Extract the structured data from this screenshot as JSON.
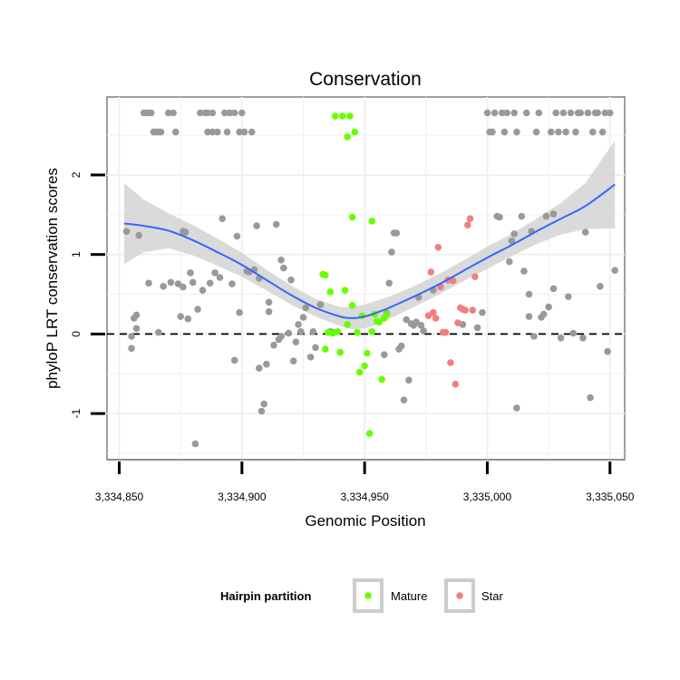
{
  "chart_data": {
    "type": "scatter",
    "title": "Conservation",
    "xlabel": "Genomic Position",
    "ylabel": "phyloP LRT conservation scores",
    "xlim": [
      3334845,
      3335056
    ],
    "ylim": [
      -1.58,
      2.98
    ],
    "x_ticks": [
      3334850,
      3334900,
      3334950,
      3335000,
      3335050
    ],
    "x_tick_labels": [
      "3,334,850",
      "3,334,900",
      "3,334,950",
      "3,335,000",
      "3,335,050"
    ],
    "y_ticks": [
      -1,
      0,
      1,
      2
    ],
    "y_tick_labels": [
      "-1",
      "0",
      "1",
      "2"
    ],
    "grid": true,
    "reference_line": {
      "y": 0,
      "style": "dashed"
    },
    "legend": {
      "title": "Hairpin partition",
      "position": "bottom",
      "entries": [
        {
          "label": "Mature",
          "color": "#66ff00"
        },
        {
          "label": "Star",
          "color": "#f08080"
        }
      ]
    },
    "colors": {
      "Other": "#999999",
      "Mature": "#66ff00",
      "Star": "#f08080",
      "smooth": "#3366ff",
      "band": "#d3d3d3"
    },
    "smooth_fit": {
      "x": [
        3334852,
        3334860,
        3334870,
        3334880,
        3334890,
        3334900,
        3334910,
        3334920,
        3334930,
        3334940,
        3334945,
        3334950,
        3334955,
        3334960,
        3334970,
        3334980,
        3334990,
        3335000,
        3335010,
        3335020,
        3335030,
        3335040,
        3335052
      ],
      "y": [
        1.39,
        1.36,
        1.3,
        1.18,
        1.03,
        0.87,
        0.68,
        0.49,
        0.33,
        0.22,
        0.2,
        0.22,
        0.27,
        0.33,
        0.47,
        0.62,
        0.79,
        0.96,
        1.12,
        1.29,
        1.45,
        1.61,
        1.88
      ],
      "lower": [
        0.88,
        1.03,
        1.08,
        0.99,
        0.86,
        0.72,
        0.55,
        0.37,
        0.22,
        0.1,
        0.06,
        0.07,
        0.12,
        0.19,
        0.34,
        0.49,
        0.66,
        0.82,
        0.98,
        1.13,
        1.25,
        1.32,
        1.33
      ],
      "upper": [
        1.9,
        1.69,
        1.52,
        1.37,
        1.2,
        1.02,
        0.81,
        0.61,
        0.44,
        0.34,
        0.34,
        0.37,
        0.42,
        0.47,
        0.6,
        0.75,
        0.92,
        1.1,
        1.26,
        1.45,
        1.65,
        1.9,
        2.43
      ]
    },
    "series": [
      {
        "name": "Other",
        "points": [
          [
            3334853,
            1.29
          ],
          [
            3334855,
            -0.03
          ],
          [
            3334855,
            -0.18
          ],
          [
            3334856,
            0.2
          ],
          [
            3334857,
            0.07
          ],
          [
            3334857,
            0.24
          ],
          [
            3334858,
            1.24
          ],
          [
            3334860,
            2.78
          ],
          [
            3334861,
            2.78
          ],
          [
            3334862,
            2.78
          ],
          [
            3334862,
            0.64
          ],
          [
            3334863,
            2.78
          ],
          [
            3334864,
            2.54
          ],
          [
            3334865,
            2.54
          ],
          [
            3334866,
            0.02
          ],
          [
            3334866,
            2.54
          ],
          [
            3334867,
            2.54
          ],
          [
            3334868,
            0.6
          ],
          [
            3334870,
            2.78
          ],
          [
            3334871,
            0.65
          ],
          [
            3334872,
            2.78
          ],
          [
            3334873,
            2.54
          ],
          [
            3334874,
            0.63
          ],
          [
            3334875,
            0.22
          ],
          [
            3334876,
            0.59
          ],
          [
            3334876,
            1.29
          ],
          [
            3334877,
            1.28
          ],
          [
            3334878,
            0.19
          ],
          [
            3334879,
            0.77
          ],
          [
            3334880,
            0.65
          ],
          [
            3334881,
            -1.38
          ],
          [
            3334882,
            0.31
          ],
          [
            3334883,
            2.78
          ],
          [
            3334884,
            0.55
          ],
          [
            3334885,
            2.78
          ],
          [
            3334886,
            2.78
          ],
          [
            3334886,
            2.54
          ],
          [
            3334887,
            0.64
          ],
          [
            3334888,
            2.54
          ],
          [
            3334888,
            2.78
          ],
          [
            3334889,
            0.77
          ],
          [
            3334890,
            2.54
          ],
          [
            3334891,
            0.71
          ],
          [
            3334892,
            1.45
          ],
          [
            3334893,
            2.78
          ],
          [
            3334894,
            2.54
          ],
          [
            3334895,
            2.78
          ],
          [
            3334896,
            0.63
          ],
          [
            3334897,
            -0.33
          ],
          [
            3334897,
            2.78
          ],
          [
            3334898,
            1.23
          ],
          [
            3334899,
            2.54
          ],
          [
            3334899,
            0.27
          ],
          [
            3334900,
            2.78
          ],
          [
            3334901,
            2.54
          ],
          [
            3334902,
            0.79
          ],
          [
            3334903,
            0.78
          ],
          [
            3334904,
            2.54
          ],
          [
            3334905,
            0.81
          ],
          [
            3334906,
            1.36
          ],
          [
            3334907,
            -0.43
          ],
          [
            3334907,
            0.7
          ],
          [
            3334908,
            -0.97
          ],
          [
            3334909,
            -0.88
          ],
          [
            3334910,
            -0.38
          ],
          [
            3334911,
            0.28
          ],
          [
            3334911,
            0.4
          ],
          [
            3334913,
            -0.14
          ],
          [
            3334914,
            1.38
          ],
          [
            3334915,
            -0.07
          ],
          [
            3334916,
            0.93
          ],
          [
            3334916,
            -0.03
          ],
          [
            3334917,
            0.83
          ],
          [
            3334919,
            0.01
          ],
          [
            3334920,
            0.68
          ],
          [
            3334921,
            -0.34
          ],
          [
            3334922,
            -0.1
          ],
          [
            3334923,
            0.12
          ],
          [
            3334924,
            0.03
          ],
          [
            3334925,
            0.21
          ],
          [
            3334926,
            0.33
          ],
          [
            3334928,
            -0.29
          ],
          [
            3334929,
            0.03
          ],
          [
            3334930,
            -0.17
          ],
          [
            3334932,
            0.37
          ],
          [
            3334936,
            0.03
          ],
          [
            3334937,
            0.02
          ],
          [
            3334958,
            -0.26
          ],
          [
            3334959,
            0.26
          ],
          [
            3334960,
            0.64
          ],
          [
            3334961,
            1.03
          ],
          [
            3334962,
            1.27
          ],
          [
            3334963,
            1.27
          ],
          [
            3334964,
            -0.19
          ],
          [
            3334965,
            -0.15
          ],
          [
            3334966,
            -0.83
          ],
          [
            3334967,
            0.18
          ],
          [
            3334968,
            -0.58
          ],
          [
            3334969,
            0.13
          ],
          [
            3334970,
            0.11
          ],
          [
            3334971,
            0.15
          ],
          [
            3334972,
            0.46
          ],
          [
            3334973,
            0.11
          ],
          [
            3334974,
            0.04
          ],
          [
            3334978,
            0.55
          ],
          [
            3334990,
            0.12
          ],
          [
            3334996,
            0.08
          ],
          [
            3334998,
            0.27
          ],
          [
            3335000,
            2.78
          ],
          [
            3335001,
            2.54
          ],
          [
            3335002,
            2.54
          ],
          [
            3335003,
            2.78
          ],
          [
            3335004,
            1.48
          ],
          [
            3335005,
            1.47
          ],
          [
            3335006,
            2.78
          ],
          [
            3335007,
            2.54
          ],
          [
            3335008,
            2.78
          ],
          [
            3335009,
            0.91
          ],
          [
            3335010,
            1.17
          ],
          [
            3335011,
            1.26
          ],
          [
            3335011,
            2.78
          ],
          [
            3335012,
            -0.93
          ],
          [
            3335012,
            2.54
          ],
          [
            3335014,
            1.48
          ],
          [
            3335015,
            0.79
          ],
          [
            3335016,
            2.78
          ],
          [
            3335017,
            0.22
          ],
          [
            3335017,
            0.5
          ],
          [
            3335018,
            1.29
          ],
          [
            3335019,
            -0.03
          ],
          [
            3335020,
            2.54
          ],
          [
            3335021,
            2.78
          ],
          [
            3335022,
            0.21
          ],
          [
            3335023,
            0.25
          ],
          [
            3335024,
            1.48
          ],
          [
            3335025,
            0.34
          ],
          [
            3335026,
            2.54
          ],
          [
            3335027,
            0.57
          ],
          [
            3335027,
            1.51
          ],
          [
            3335028,
            2.78
          ],
          [
            3335029,
            2.54
          ],
          [
            3335030,
            -0.05
          ],
          [
            3335031,
            2.78
          ],
          [
            3335032,
            2.54
          ],
          [
            3335033,
            0.47
          ],
          [
            3335034,
            2.78
          ],
          [
            3335035,
            0.01
          ],
          [
            3335036,
            2.54
          ],
          [
            3335037,
            2.78
          ],
          [
            3335038,
            2.78
          ],
          [
            3335039,
            -0.05
          ],
          [
            3335040,
            1.28
          ],
          [
            3335041,
            2.78
          ],
          [
            3335042,
            -0.8
          ],
          [
            3335043,
            2.54
          ],
          [
            3335044,
            2.78
          ],
          [
            3335045,
            2.78
          ],
          [
            3335046,
            0.6
          ],
          [
            3335047,
            2.54
          ],
          [
            3335048,
            2.78
          ],
          [
            3335049,
            -0.22
          ],
          [
            3335050,
            2.78
          ],
          [
            3335052,
            0.8
          ]
        ]
      },
      {
        "name": "Mature",
        "points": [
          [
            3334933,
            0.75
          ],
          [
            3334934,
            0.74
          ],
          [
            3334934,
            -0.19
          ],
          [
            3334935,
            0.02
          ],
          [
            3334936,
            0.53
          ],
          [
            3334937,
            0.01
          ],
          [
            3334938,
            2.74
          ],
          [
            3334939,
            0.03
          ],
          [
            3334940,
            -0.23
          ],
          [
            3334941,
            2.74
          ],
          [
            3334942,
            0.55
          ],
          [
            3334943,
            2.48
          ],
          [
            3334943,
            0.12
          ],
          [
            3334944,
            2.74
          ],
          [
            3334945,
            0.36
          ],
          [
            3334945,
            1.47
          ],
          [
            3334946,
            2.54
          ],
          [
            3334947,
            0.02
          ],
          [
            3334948,
            -0.48
          ],
          [
            3334949,
            0.23
          ],
          [
            3334950,
            -0.4
          ],
          [
            3334951,
            -0.24
          ],
          [
            3334952,
            -1.25
          ],
          [
            3334953,
            1.42
          ],
          [
            3334953,
            0.03
          ],
          [
            3334954,
            0.25
          ],
          [
            3334955,
            0.16
          ],
          [
            3334956,
            0.15
          ],
          [
            3334957,
            -0.57
          ],
          [
            3334958,
            0.2
          ],
          [
            3334959,
            0.25
          ]
        ]
      },
      {
        "name": "Star",
        "points": [
          [
            3334976,
            0.23
          ],
          [
            3334977,
            0.78
          ],
          [
            3334978,
            0.27
          ],
          [
            3334979,
            0.2
          ],
          [
            3334980,
            1.09
          ],
          [
            3334981,
            0.59
          ],
          [
            3334982,
            0.02
          ],
          [
            3334983,
            0.02
          ],
          [
            3334984,
            0.68
          ],
          [
            3334985,
            -0.36
          ],
          [
            3334986,
            0.67
          ],
          [
            3334987,
            -0.63
          ],
          [
            3334988,
            0.14
          ],
          [
            3334989,
            0.33
          ],
          [
            3334990,
            0.31
          ],
          [
            3334991,
            0.3
          ],
          [
            3334992,
            1.37
          ],
          [
            3334993,
            1.45
          ],
          [
            3334994,
            0.3
          ],
          [
            3334995,
            0.72
          ]
        ]
      }
    ]
  }
}
